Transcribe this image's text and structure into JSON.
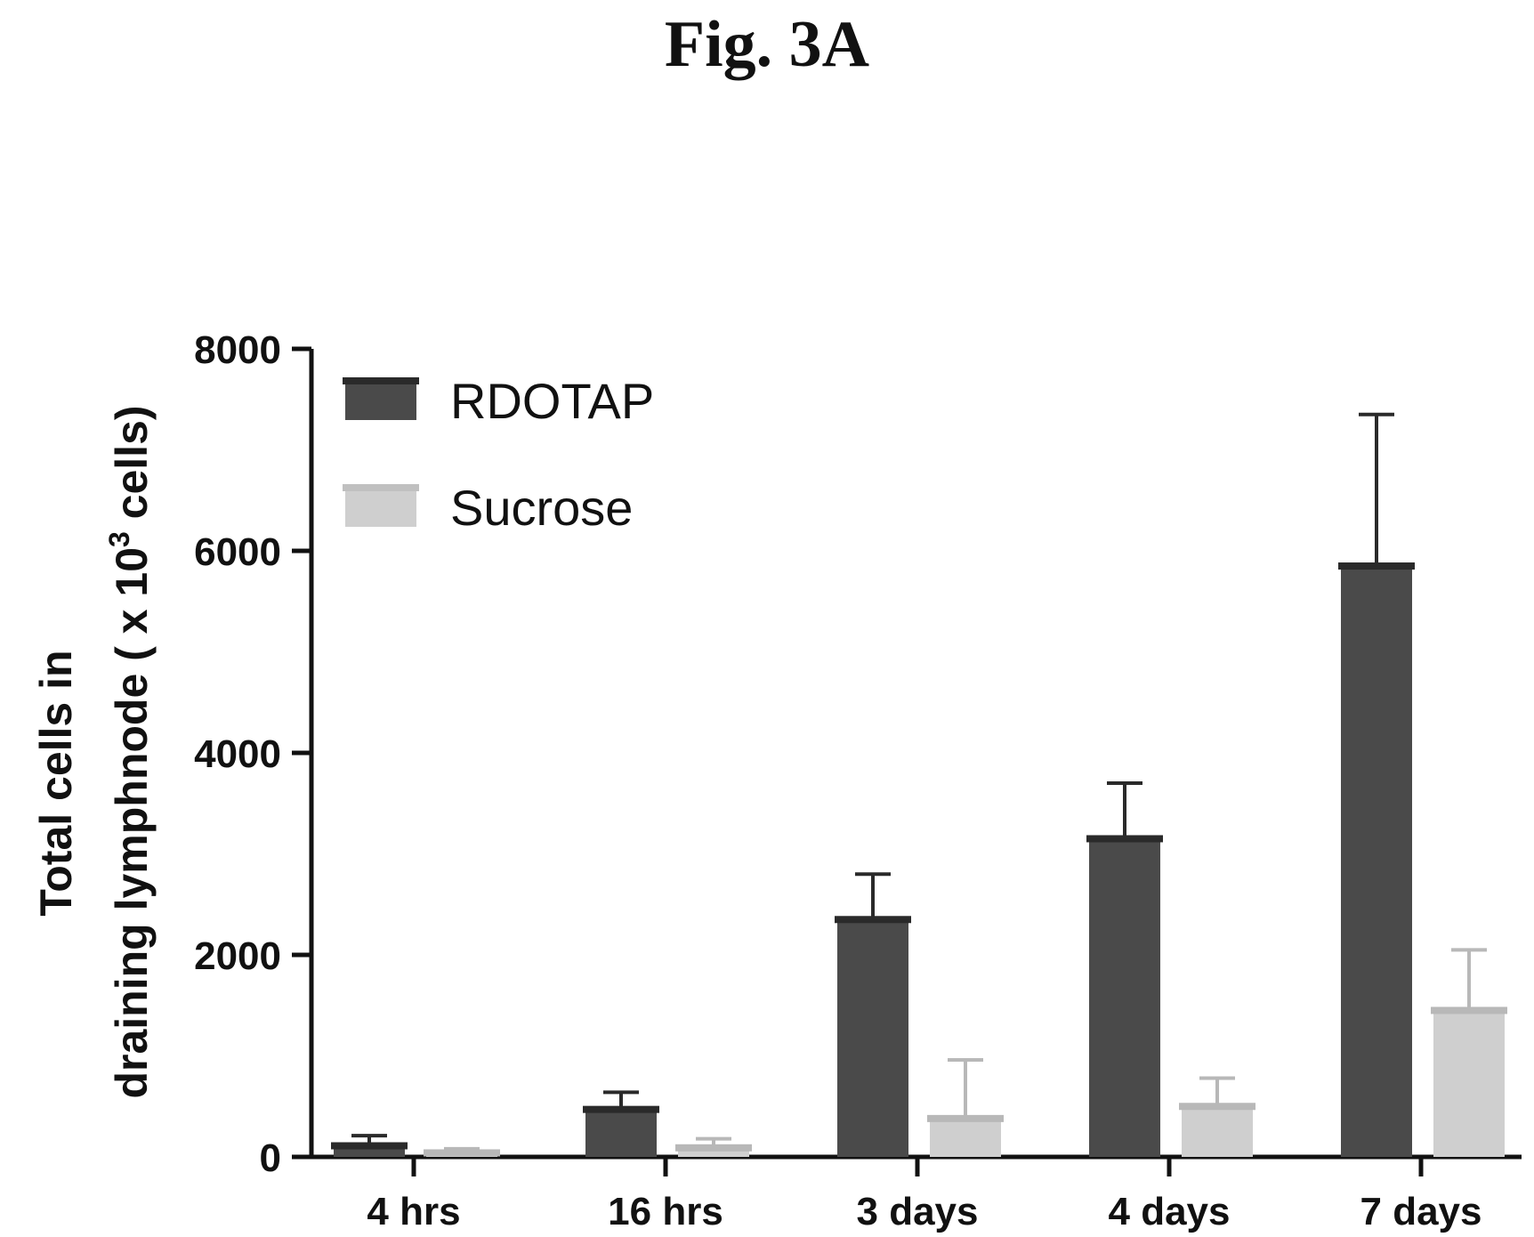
{
  "figure": {
    "title": "Fig. 3A"
  },
  "chart_data": {
    "type": "bar",
    "title": "",
    "xlabel": "",
    "ylabel_line1": "Total cells in",
    "ylabel_line2_prefix": "draining lymphnode ( x 10",
    "ylabel_line2_sup": "3",
    "ylabel_line2_suffix": " cells)",
    "ylim": [
      0,
      8000
    ],
    "yticks": [
      "0",
      "2000",
      "4000",
      "6000",
      "8000"
    ],
    "ytick_values": [
      0,
      2000,
      4000,
      6000,
      8000
    ],
    "categories": [
      "4 hrs",
      "16 hrs",
      "3 days",
      "4 days",
      "7 days"
    ],
    "grid": false,
    "legend_position": "top-left",
    "series": [
      {
        "name": "RDOTAP",
        "color": "#4a4a4a",
        "values": [
          110,
          470,
          2350,
          3150,
          5850
        ],
        "errors": [
          100,
          170,
          450,
          550,
          1500
        ]
      },
      {
        "name": "Sucrose",
        "color": "#cfcfcf",
        "values": [
          40,
          90,
          380,
          500,
          1450
        ],
        "errors": [
          40,
          90,
          580,
          280,
          600
        ]
      }
    ]
  }
}
